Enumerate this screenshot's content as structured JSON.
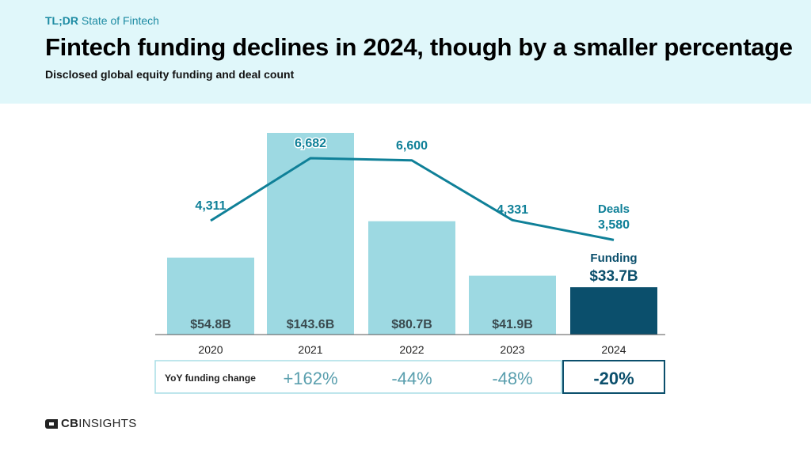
{
  "header": {
    "kicker_bold": "TL;DR",
    "kicker_rest": "State of Fintech",
    "title": "Fintech funding declines in 2024, though by a smaller percentage",
    "subtitle": "Disclosed global equity funding and deal count"
  },
  "chart_data": {
    "type": "bar",
    "categories": [
      "2020",
      "2021",
      "2022",
      "2023",
      "2024"
    ],
    "series": [
      {
        "values": [
          54.8,
          143.6,
          80.7,
          41.9,
          33.7
        ],
        "value_labels": [
          "$54.8B",
          "$143.6B",
          "$80.7B",
          "$41.9B",
          "$33.7B"
        ],
        "colors": [
          "#9dd9e2",
          "#9dd9e2",
          "#9dd9e2",
          "#9dd9e2",
          "#0b4f6c"
        ]
      },
      {
        "type": "line",
        "values": [
          4311,
          6682,
          6600,
          4331,
          3580
        ],
        "value_labels": [
          "4,311",
          "6,682",
          "6,600",
          "4,331",
          "3,580"
        ],
        "color": "#0f8098"
      }
    ],
    "annotations": {
      "deals_label": "Deals",
      "funding_label": "Funding"
    },
    "yoy": {
      "label": "YoY funding change",
      "values": [
        "+162%",
        "-44%",
        "-48%",
        "-20%"
      ]
    }
  },
  "logo": {
    "bold": "CB",
    "rest": "INSIGHTS"
  },
  "colors": {
    "header_bg": "#e0f7fa",
    "accent": "#1d8ba3",
    "bar_light": "#9dd9e2",
    "bar_dark": "#0b4f6c",
    "line": "#0f8098"
  }
}
